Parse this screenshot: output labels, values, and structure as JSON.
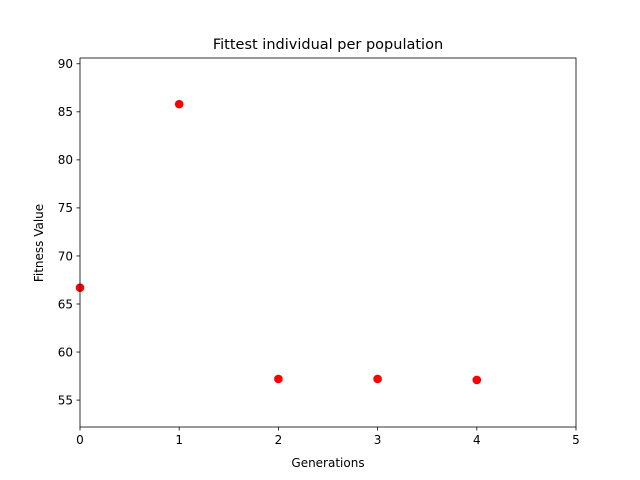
{
  "chart_data": {
    "type": "scatter",
    "title": "Fittest individual per population",
    "xlabel": "Generations",
    "ylabel": "Fitness Value",
    "x": [
      0,
      1,
      2,
      3,
      4
    ],
    "y": [
      66.7,
      85.8,
      57.2,
      57.2,
      57.1
    ],
    "xlim": [
      0,
      5
    ],
    "ylim": [
      52.2,
      90.6
    ],
    "xticks": [
      0,
      1,
      2,
      3,
      4,
      5
    ],
    "yticks": [
      55,
      60,
      65,
      70,
      75,
      80,
      85,
      90
    ],
    "marker_color": "#ff0000",
    "grid": false,
    "legend": "none"
  }
}
